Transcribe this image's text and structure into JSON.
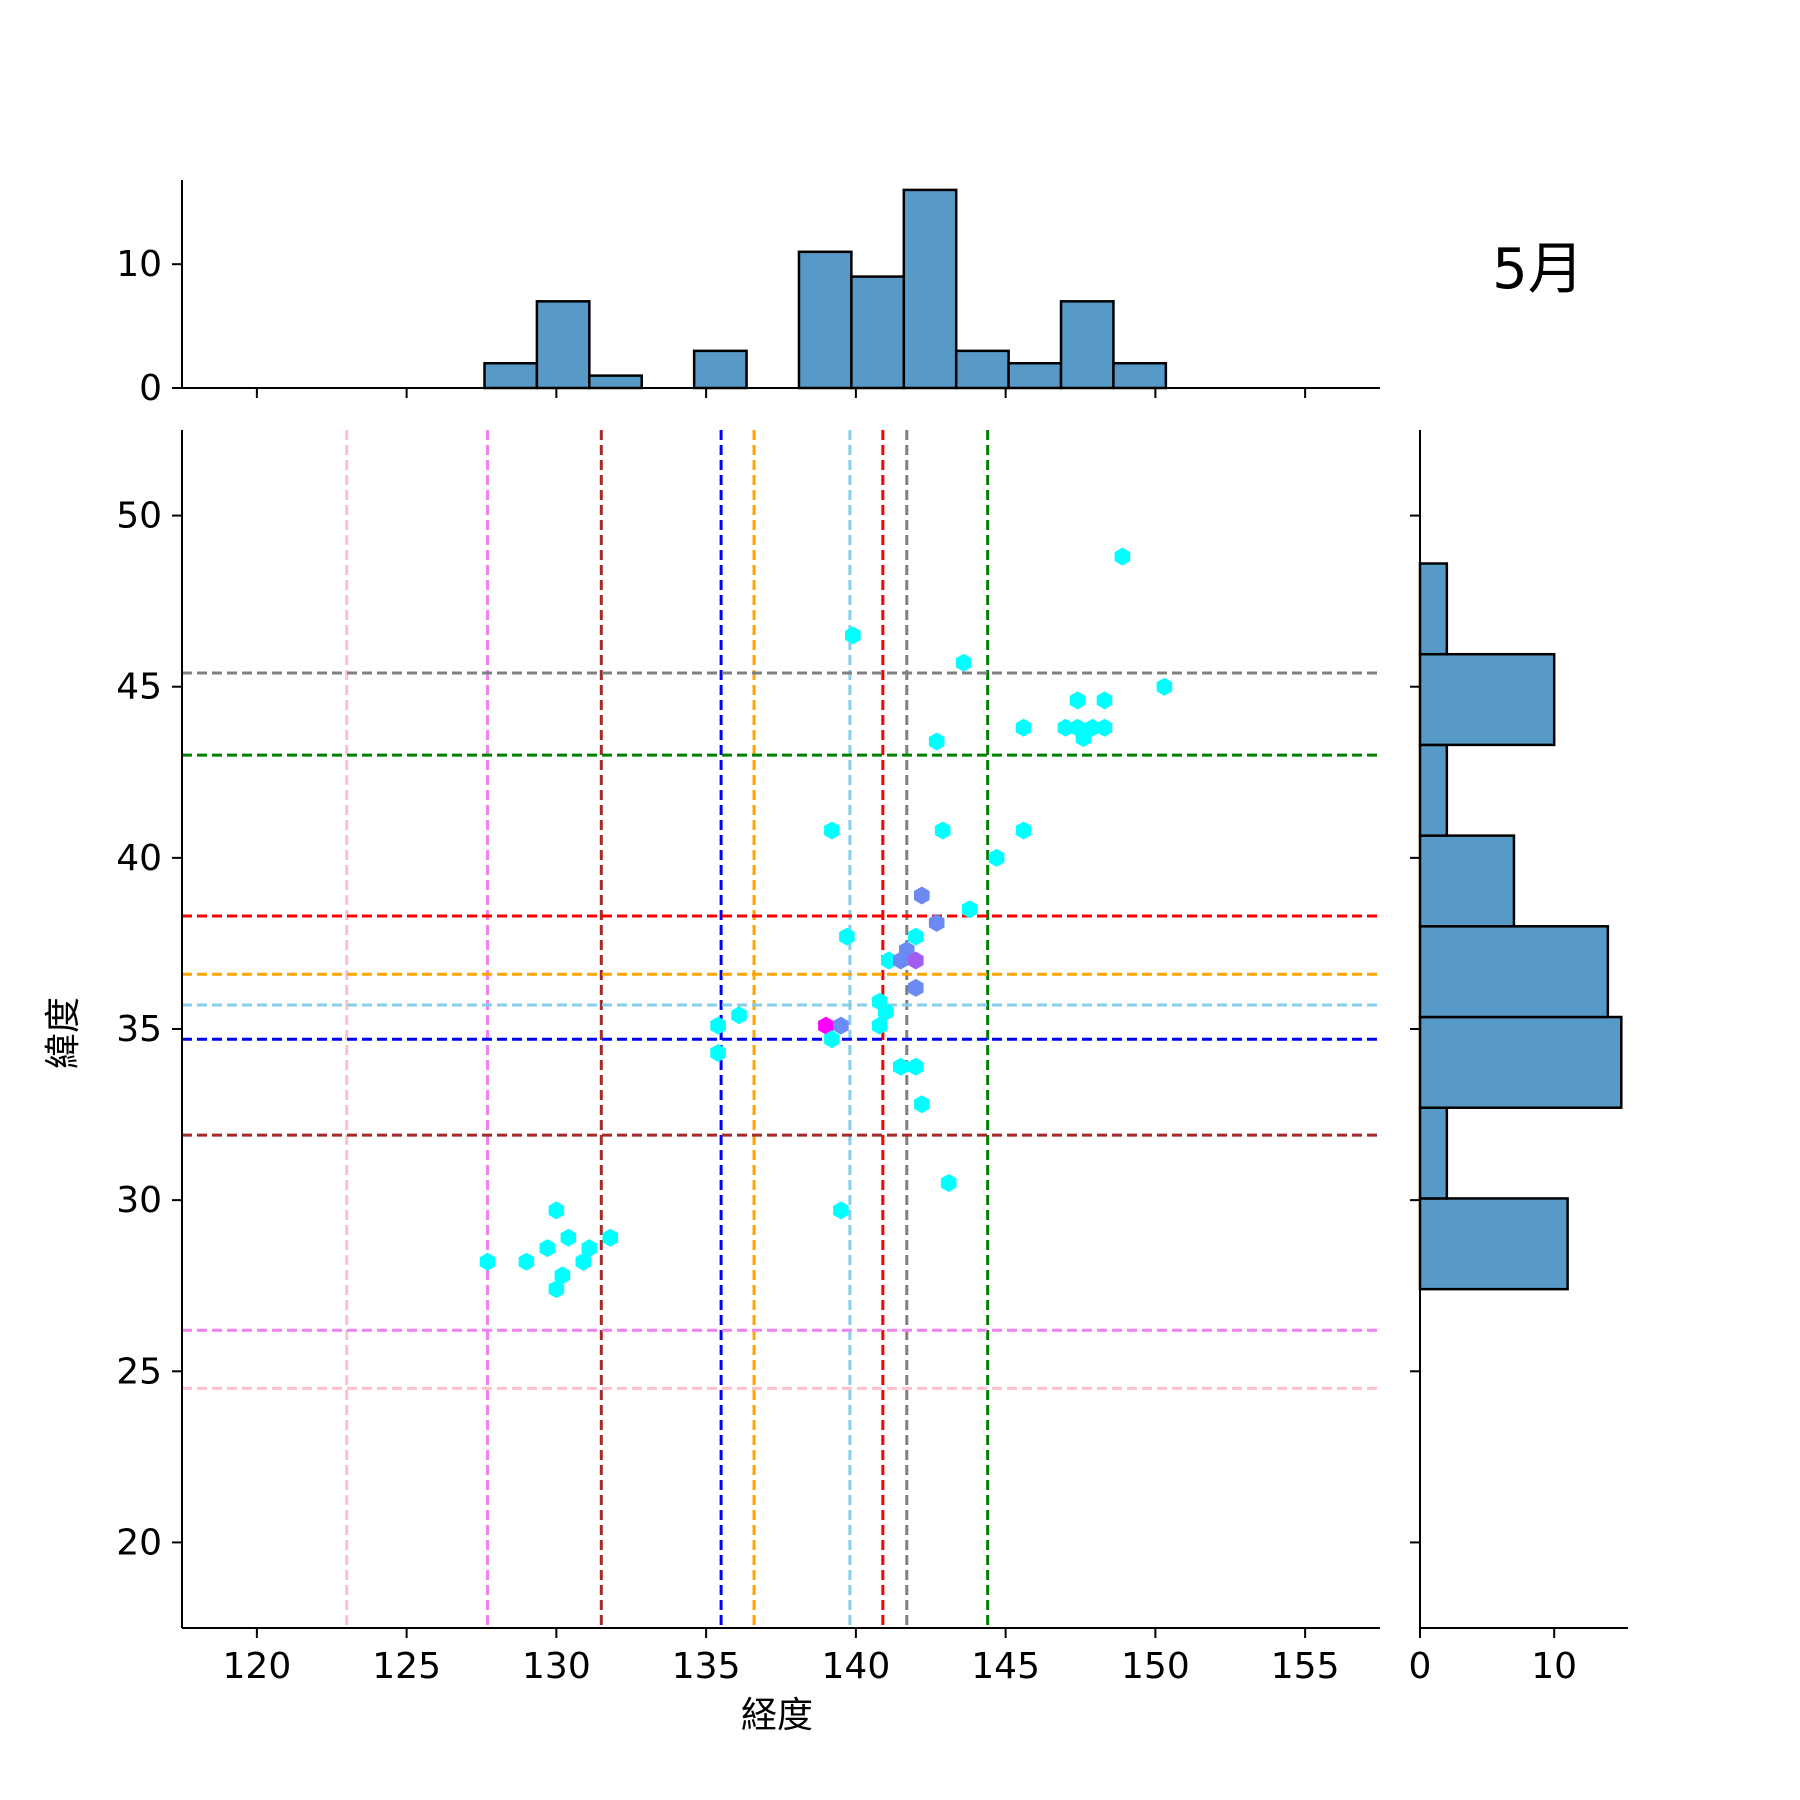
{
  "chart_data": {
    "type": "scatter",
    "title": "5月",
    "xlabel": "経度",
    "ylabel": "緯度",
    "xlim": [
      117.5,
      157.5
    ],
    "ylim": [
      17.5,
      52.5
    ],
    "x_ticks": [
      120,
      125,
      130,
      135,
      140,
      145,
      150,
      155
    ],
    "y_ticks": [
      20,
      25,
      30,
      35,
      40,
      45,
      50
    ],
    "points": [
      {
        "x": 148.9,
        "y": 48.8,
        "color": "#00FFFF"
      },
      {
        "x": 139.9,
        "y": 46.5,
        "color": "#00FFFF"
      },
      {
        "x": 143.6,
        "y": 45.7,
        "color": "#00FFFF"
      },
      {
        "x": 150.3,
        "y": 45.0,
        "color": "#00FFFF"
      },
      {
        "x": 147.4,
        "y": 44.6,
        "color": "#00FFFF"
      },
      {
        "x": 148.3,
        "y": 44.6,
        "color": "#00FFFF"
      },
      {
        "x": 145.6,
        "y": 43.8,
        "color": "#00FFFF"
      },
      {
        "x": 147.0,
        "y": 43.8,
        "color": "#00FFFF"
      },
      {
        "x": 147.4,
        "y": 43.8,
        "color": "#00FFFF"
      },
      {
        "x": 147.9,
        "y": 43.8,
        "color": "#00FFFF"
      },
      {
        "x": 148.3,
        "y": 43.8,
        "color": "#00FFFF"
      },
      {
        "x": 147.6,
        "y": 43.5,
        "color": "#00FFFF"
      },
      {
        "x": 142.7,
        "y": 43.4,
        "color": "#00FFFF"
      },
      {
        "x": 139.2,
        "y": 40.8,
        "color": "#00FFFF"
      },
      {
        "x": 142.9,
        "y": 40.8,
        "color": "#00FFFF"
      },
      {
        "x": 145.6,
        "y": 40.8,
        "color": "#00FFFF"
      },
      {
        "x": 144.7,
        "y": 40.0,
        "color": "#00FFFF"
      },
      {
        "x": 142.2,
        "y": 38.9,
        "color": "#6B8AF2"
      },
      {
        "x": 143.8,
        "y": 38.5,
        "color": "#00FFFF"
      },
      {
        "x": 142.7,
        "y": 38.1,
        "color": "#6B8AF2"
      },
      {
        "x": 139.7,
        "y": 37.7,
        "color": "#00FFFF"
      },
      {
        "x": 142.0,
        "y": 37.7,
        "color": "#00FFFF"
      },
      {
        "x": 141.7,
        "y": 37.3,
        "color": "#6B8AF2"
      },
      {
        "x": 141.1,
        "y": 37.0,
        "color": "#00FFFF"
      },
      {
        "x": 141.5,
        "y": 37.0,
        "color": "#6B8AF2"
      },
      {
        "x": 142.0,
        "y": 37.0,
        "color": "#A35CF0"
      },
      {
        "x": 142.0,
        "y": 36.2,
        "color": "#6B8AF2"
      },
      {
        "x": 140.8,
        "y": 35.8,
        "color": "#00FFFF"
      },
      {
        "x": 141.0,
        "y": 35.5,
        "color": "#00FFFF"
      },
      {
        "x": 136.1,
        "y": 35.4,
        "color": "#00FFFF"
      },
      {
        "x": 135.4,
        "y": 35.1,
        "color": "#00FFFF"
      },
      {
        "x": 139.0,
        "y": 35.1,
        "color": "#FF00FF"
      },
      {
        "x": 139.5,
        "y": 35.1,
        "color": "#6B8AF2"
      },
      {
        "x": 140.8,
        "y": 35.1,
        "color": "#00FFFF"
      },
      {
        "x": 139.2,
        "y": 34.7,
        "color": "#00FFFF"
      },
      {
        "x": 135.4,
        "y": 34.3,
        "color": "#00FFFF"
      },
      {
        "x": 141.5,
        "y": 33.9,
        "color": "#00FFFF"
      },
      {
        "x": 142.0,
        "y": 33.9,
        "color": "#00FFFF"
      },
      {
        "x": 142.2,
        "y": 32.8,
        "color": "#00FFFF"
      },
      {
        "x": 143.1,
        "y": 30.5,
        "color": "#00FFFF"
      },
      {
        "x": 130.0,
        "y": 29.7,
        "color": "#00FFFF"
      },
      {
        "x": 139.5,
        "y": 29.7,
        "color": "#00FFFF"
      },
      {
        "x": 130.4,
        "y": 28.9,
        "color": "#00FFFF"
      },
      {
        "x": 131.8,
        "y": 28.9,
        "color": "#00FFFF"
      },
      {
        "x": 129.7,
        "y": 28.6,
        "color": "#00FFFF"
      },
      {
        "x": 131.1,
        "y": 28.6,
        "color": "#00FFFF"
      },
      {
        "x": 127.7,
        "y": 28.2,
        "color": "#00FFFF"
      },
      {
        "x": 129.0,
        "y": 28.2,
        "color": "#00FFFF"
      },
      {
        "x": 130.9,
        "y": 28.2,
        "color": "#00FFFF"
      },
      {
        "x": 130.2,
        "y": 27.8,
        "color": "#00FFFF"
      },
      {
        "x": 130.0,
        "y": 27.4,
        "color": "#00FFFF"
      }
    ],
    "reference_lines": {
      "vertical": [
        {
          "x": 123.0,
          "color": "#FFC0CB"
        },
        {
          "x": 127.7,
          "color": "#EE82EE"
        },
        {
          "x": 131.5,
          "color": "#A52A2A"
        },
        {
          "x": 135.5,
          "color": "#0000FF"
        },
        {
          "x": 136.6,
          "color": "#FFA500"
        },
        {
          "x": 139.8,
          "color": "#87CEEB"
        },
        {
          "x": 140.9,
          "color": "#FF0000"
        },
        {
          "x": 141.7,
          "color": "#808080"
        },
        {
          "x": 144.4,
          "color": "#008000"
        }
      ],
      "horizontal": [
        {
          "y": 45.4,
          "color": "#808080"
        },
        {
          "y": 43.0,
          "color": "#008000"
        },
        {
          "y": 38.3,
          "color": "#FF0000"
        },
        {
          "y": 36.6,
          "color": "#FFA500"
        },
        {
          "y": 35.7,
          "color": "#87CEEB"
        },
        {
          "y": 34.7,
          "color": "#0000FF"
        },
        {
          "y": 31.9,
          "color": "#A52A2A"
        },
        {
          "y": 26.2,
          "color": "#EE82EE"
        },
        {
          "y": 24.5,
          "color": "#FFC0CB"
        }
      ]
    },
    "marginal_x": {
      "type": "bar",
      "bin_edges": [
        127.6,
        129.35,
        131.1,
        132.85,
        134.6,
        136.35,
        138.1,
        139.85,
        141.6,
        143.35,
        145.1,
        146.85,
        148.6,
        150.35
      ],
      "counts": [
        2,
        7,
        1,
        0,
        3,
        0,
        11,
        9,
        16,
        3,
        2,
        7,
        2
      ],
      "ylim": [
        0,
        16.8
      ],
      "ticks": [
        0,
        10
      ],
      "color": "#5799C7"
    },
    "marginal_y": {
      "type": "bar",
      "bin_edges": [
        27.4,
        30.05,
        32.7,
        35.35,
        38.0,
        40.65,
        43.3,
        45.95,
        48.6
      ],
      "counts": [
        11,
        2,
        15,
        14,
        7,
        2,
        10,
        2
      ],
      "xlim": [
        0,
        15.5
      ],
      "ticks": [
        0,
        10
      ],
      "color": "#5799C7"
    }
  }
}
